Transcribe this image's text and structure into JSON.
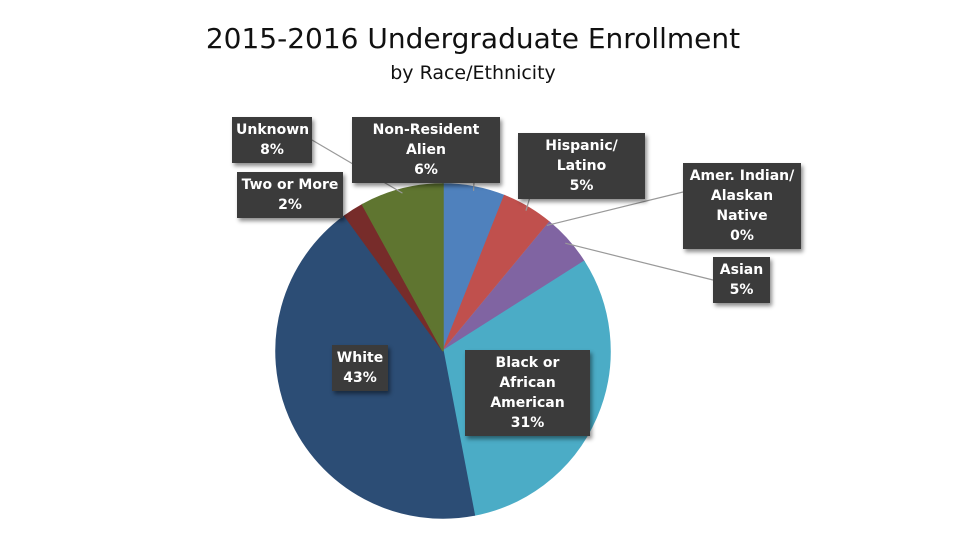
{
  "chart_data": {
    "type": "pie",
    "title": "2015-2016 Undergraduate Enrollment",
    "subtitle": "by Race/Ethnicity",
    "categories": [
      "Non-Resident Alien",
      "Hispanic/ Latino",
      "Amer. Indian/ Alaskan Native",
      "Asian",
      "Black or African American",
      "White",
      "Two or More",
      "Unknown"
    ],
    "values": [
      6,
      5,
      0,
      5,
      31,
      43,
      2,
      8
    ],
    "value_labels": [
      "6%",
      "5%",
      "0%",
      "5%",
      "31%",
      "43%",
      "2%",
      "8%"
    ],
    "colors": [
      "#4f81bd",
      "#c0504d",
      "#f79646",
      "#8064a2",
      "#4bacc6",
      "#2c4d75",
      "#772c2a",
      "#5f7530"
    ]
  }
}
